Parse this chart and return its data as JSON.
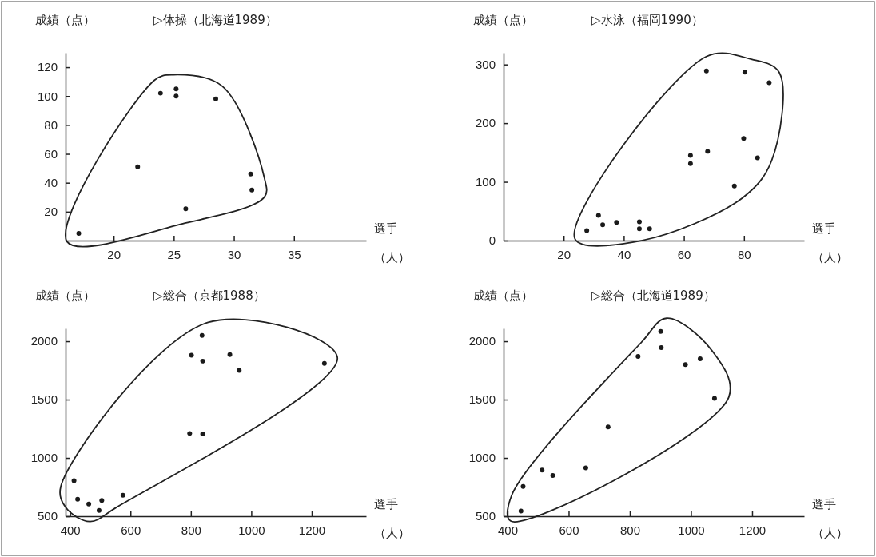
{
  "chart_data": [
    {
      "type": "scatter",
      "title": "▷体操（北海道1989）",
      "ylabel": "成績（点）",
      "xlabel": "選手",
      "annotations": [
        "（人）"
      ],
      "marker": "circle",
      "grid": false,
      "xlim": [
        16,
        41
      ],
      "ylim": [
        0,
        130
      ],
      "xticks": [
        20,
        25,
        30,
        35
      ],
      "yticks": [
        20,
        40,
        60,
        80,
        100,
        120
      ],
      "series": [
        {
          "color": "#1a1a1a",
          "x": [
            17.1,
            23.9,
            25.2,
            25.2,
            28.5,
            22.0,
            26.0,
            31.4,
            31.5
          ],
          "values": [
            5,
            102,
            105,
            100,
            98,
            51,
            22,
            46,
            35
          ]
        }
      ]
    },
    {
      "type": "scatter",
      "title": "▷水泳（福岡1990）",
      "ylabel": "成績（点）",
      "xlabel": "選手",
      "annotations": [
        "（人）"
      ],
      "marker": "circle",
      "grid": false,
      "xlim": [
        0,
        100
      ],
      "ylim": [
        0,
        320
      ],
      "xticks": [
        20,
        40,
        60,
        80
      ],
      "yticks": [
        0,
        100,
        200,
        300
      ],
      "series": [
        {
          "color": "#1a1a1a",
          "x": [
            27.7,
            31.6,
            33.0,
            37.6,
            45.2,
            45.2,
            48.6,
            62.2,
            62.2,
            67.9,
            67.5,
            80.3,
            88.4,
            79.9,
            84.5,
            76.8
          ],
          "values": [
            17,
            43,
            27,
            31,
            32,
            20,
            20,
            145,
            131,
            152,
            289,
            287,
            269,
            174,
            141,
            93
          ]
        }
      ]
    },
    {
      "type": "scatter",
      "title": "▷総合（京都1988）",
      "ylabel": "成績（点）",
      "xlabel": "選手",
      "annotations": [
        "（人）"
      ],
      "marker": "circle",
      "grid": false,
      "xlim": [
        385,
        1380
      ],
      "ylim": [
        500,
        2110
      ],
      "xticks": [
        400,
        600,
        800,
        1000,
        1200
      ],
      "yticks": [
        500,
        1000,
        1500,
        2000
      ],
      "series": [
        {
          "color": "#1a1a1a",
          "x": [
            837,
            802,
            839,
            929,
            960,
            1242,
            796,
            839,
            413,
            425,
            462,
            505,
            496,
            575
          ],
          "values": [
            2050,
            1880,
            1830,
            1885,
            1750,
            1810,
            1210,
            1205,
            805,
            645,
            605,
            635,
            550,
            680
          ]
        }
      ]
    },
    {
      "type": "scatter",
      "title": "▷総合（北海道1989）",
      "ylabel": "成績（点）",
      "xlabel": "選手",
      "annotations": [
        "（人）"
      ],
      "marker": "circle",
      "grid": false,
      "xlim": [
        387,
        1370
      ],
      "ylim": [
        500,
        2110
      ],
      "xticks": [
        400,
        600,
        800,
        1000,
        1200
      ],
      "yticks": [
        500,
        1000,
        1500,
        2000
      ],
      "series": [
        {
          "color": "#1a1a1a",
          "x": [
            444,
            451,
            513,
            548,
            656,
            729,
            827,
            901,
            903,
            982,
            1030,
            1077
          ],
          "values": [
            545,
            755,
            895,
            850,
            915,
            1265,
            1870,
            2085,
            1945,
            1800,
            1850,
            1510
          ]
        }
      ]
    }
  ]
}
